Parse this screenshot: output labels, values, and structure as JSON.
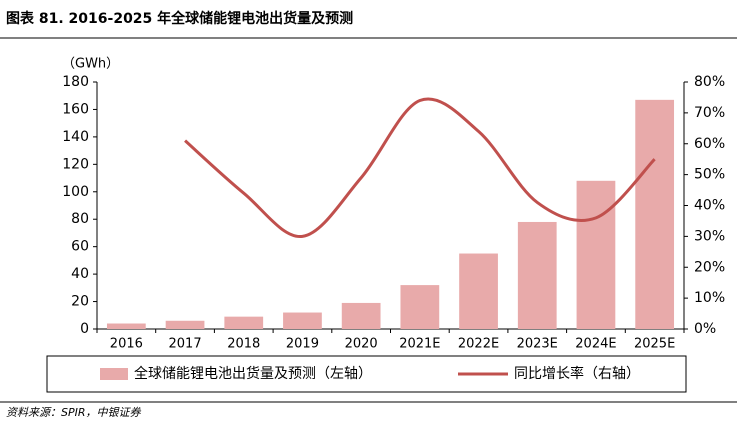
{
  "chart_data": {
    "type": "bar_line",
    "title": "图表 81. 2016-2025 年全球储能锂电池出货量及预测",
    "y_label": "（GWh）",
    "source": "资料来源：SPIR，中银证券",
    "categories": [
      "2016",
      "2017",
      "2018",
      "2019",
      "2020",
      "2021E",
      "2022E",
      "2023E",
      "2024E",
      "2025E"
    ],
    "series": [
      {
        "name": "全球储能锂电池出货量及预测（左轴）",
        "type": "bar",
        "color": "#e8aaaa",
        "values": [
          4,
          6,
          9,
          12,
          19,
          32,
          55,
          78,
          108,
          167
        ]
      },
      {
        "name": "同比增长率（右轴）",
        "type": "line",
        "axis": "y2",
        "color": "#c0504d",
        "values": [
          null,
          61,
          44,
          30,
          49,
          74,
          64,
          41,
          36,
          55
        ]
      }
    ],
    "ylim": [
      0,
      180
    ],
    "yticks": [
      0,
      20,
      40,
      60,
      80,
      100,
      120,
      140,
      160,
      180
    ],
    "y2lim": [
      0,
      80
    ],
    "y2ticks": [
      {
        "value": 0,
        "label": "0%"
      },
      {
        "value": 10,
        "label": "10%"
      },
      {
        "value": 20,
        "label": "20%"
      },
      {
        "value": 30,
        "label": "30%"
      },
      {
        "value": 40,
        "label": "40%"
      },
      {
        "value": 50,
        "label": "50%"
      },
      {
        "value": 60,
        "label": "60%"
      },
      {
        "value": 70,
        "label": "70%"
      },
      {
        "value": 80,
        "label": "80%"
      }
    ],
    "legend": "bottom"
  }
}
